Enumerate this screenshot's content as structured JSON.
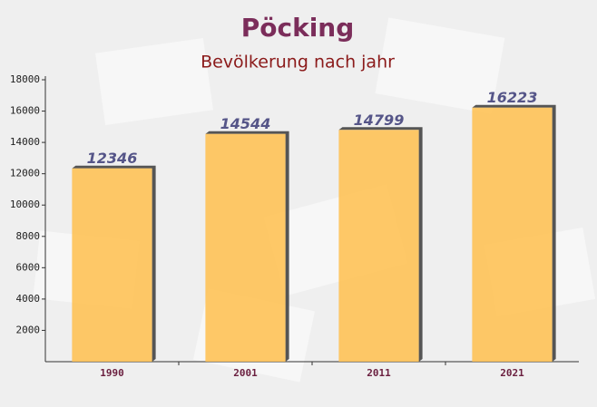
{
  "chart_data": {
    "type": "bar",
    "title": "Pöcking",
    "subtitle": "Bevölkerung nach jahr",
    "categories": [
      "1990",
      "2001",
      "2011",
      "2021"
    ],
    "values": [
      12346,
      14544,
      14799,
      16223
    ],
    "color": "#ffc04d",
    "ylim": [
      0,
      18000
    ],
    "yticks": [
      2000,
      4000,
      6000,
      8000,
      10000,
      12000,
      14000,
      16000,
      18000
    ],
    "grid": false
  }
}
